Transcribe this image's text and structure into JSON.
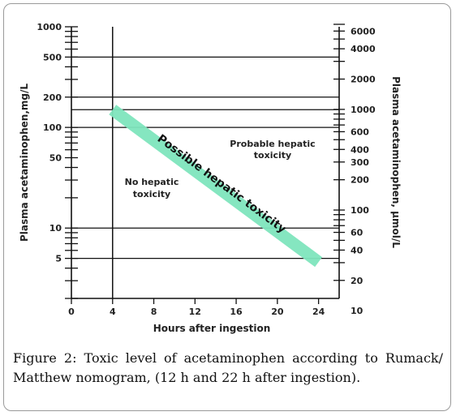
{
  "chart_data": {
    "type": "line",
    "xlabel": "Hours after ingestion",
    "ylabel_left": "Plasma acetaminophen,mg/L",
    "ylabel_right": "Plasma acetaminophen, μmol/L",
    "x_ticks": [
      0,
      4,
      8,
      12,
      16,
      20,
      24
    ],
    "xlim": [
      0,
      26
    ],
    "y_left_scale": "log",
    "y_left_ticks": [
      1000,
      500,
      200,
      100,
      50,
      10,
      5
    ],
    "y_left_lim": [
      2,
      1000
    ],
    "y_right_ticks": [
      6000,
      4000,
      2000,
      1000,
      600,
      400,
      300,
      200,
      100,
      60,
      40,
      20,
      10
    ],
    "y_right_factor": 6.62,
    "hlines": [
      500,
      200,
      150,
      100,
      10,
      5
    ],
    "vline_x": 4,
    "series": [
      {
        "x": [
          4,
          24
        ],
        "y": [
          150,
          4.6
        ]
      }
    ],
    "annotations": {
      "band": "Possible hepatic toxicity",
      "above_line1": "Probable hepatic",
      "above_line2": "toxicity",
      "below_line1": "No hepatic",
      "below_line2": "toxicity"
    },
    "colors": {
      "band": "#7fe5bd",
      "grid": "#111111"
    }
  },
  "caption": {
    "label": "Figure 2:",
    "text": "Toxic level of acetaminophen according to Rumack/ Matthew nomogram, (12 h and 22 h after ingestion)."
  }
}
